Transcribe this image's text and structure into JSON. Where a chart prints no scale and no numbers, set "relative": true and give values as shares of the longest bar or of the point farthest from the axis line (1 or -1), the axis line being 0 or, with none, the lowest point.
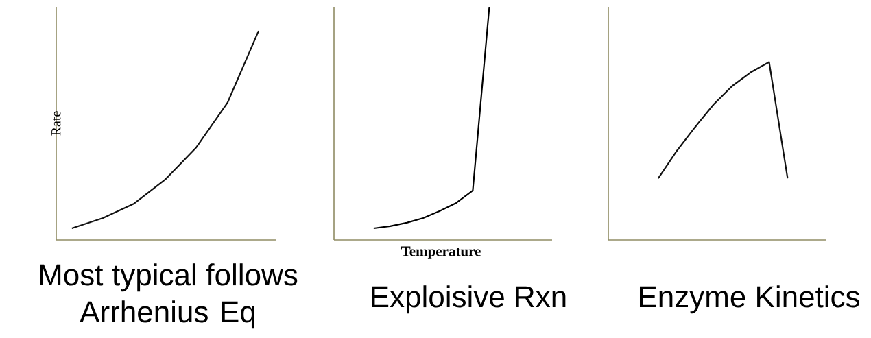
{
  "chart_data": [
    {
      "type": "line",
      "title": "Most typical follows Arrhenius Eq",
      "ylabel": "Rate",
      "relative": true,
      "categories": [
        null,
        null,
        null,
        null,
        null,
        null,
        null
      ],
      "color": "#111111",
      "values": [
        0.056,
        0.105,
        0.174,
        0.289,
        0.443,
        0.656,
        1
      ]
    },
    {
      "type": "line",
      "title": "Exploisive Rxn",
      "xlabel": "Temperature",
      "relative": true,
      "categories": [
        null,
        null,
        null,
        null,
        null,
        null,
        null,
        null
      ],
      "color": "#000000",
      "values": [
        0.05,
        0.059,
        0.074,
        0.094,
        0.124,
        0.159,
        0.212,
        1
      ]
    },
    {
      "type": "line",
      "title": "Enzyme Kinetics",
      "relative": true,
      "categories": [
        null,
        null,
        null,
        null,
        null,
        null,
        null,
        null
      ],
      "color": "#111111",
      "values": [
        0.346,
        0.5,
        0.635,
        0.762,
        0.865,
        0.942,
        1,
        0.346
      ]
    }
  ]
}
